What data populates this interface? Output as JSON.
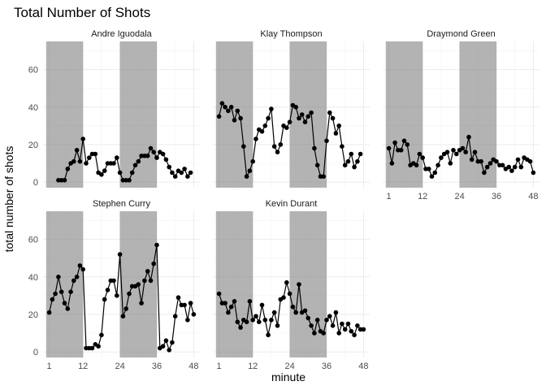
{
  "chart_data": {
    "type": "line",
    "title": "Total Number of Shots",
    "xlabel": "minute",
    "ylabel": "total number of shots",
    "xlim": [
      -1,
      50
    ],
    "ylim": [
      -3,
      75
    ],
    "x_ticks": [
      1,
      12,
      24,
      36,
      48
    ],
    "y_ticks": [
      0,
      20,
      40,
      60
    ],
    "shaded_ranges": [
      [
        0,
        12
      ],
      [
        24,
        36
      ]
    ],
    "panels": [
      {
        "name": "Andre Iguodala",
        "x": [
          4,
          5,
          6,
          7,
          8,
          9,
          10,
          11,
          12,
          13,
          14,
          15,
          16,
          17,
          18,
          19,
          20,
          21,
          22,
          23,
          24,
          25,
          26,
          27,
          28,
          29,
          30,
          31,
          32,
          33,
          34,
          35,
          36,
          37,
          38,
          39,
          40,
          41,
          42,
          43,
          44,
          45,
          46,
          47,
          48
        ],
        "values": [
          1,
          1,
          1,
          7,
          10,
          11,
          17,
          11,
          23,
          10,
          13,
          15,
          15,
          5,
          4,
          6,
          10,
          10,
          10,
          13,
          5,
          1,
          1,
          1,
          5,
          9,
          11,
          14,
          14,
          14,
          18,
          16,
          13,
          16,
          15,
          12,
          8,
          5,
          3,
          6,
          5,
          7,
          3,
          5,
          null
        ]
      },
      {
        "name": "Klay Thompson",
        "x": [
          1,
          2,
          3,
          4,
          5,
          6,
          7,
          8,
          9,
          10,
          11,
          12,
          13,
          14,
          15,
          16,
          17,
          18,
          19,
          20,
          21,
          22,
          23,
          24,
          25,
          26,
          27,
          28,
          29,
          30,
          31,
          32,
          33,
          34,
          35,
          36,
          37,
          38,
          39,
          40,
          41,
          42,
          43,
          44,
          45,
          46,
          47,
          48
        ],
        "values": [
          35,
          42,
          40,
          38,
          40,
          33,
          38,
          34,
          19,
          3,
          6,
          11,
          23,
          28,
          27,
          30,
          34,
          39,
          19,
          16,
          20,
          30,
          29,
          32,
          41,
          40,
          34,
          36,
          32,
          35,
          37,
          18,
          9,
          3,
          3,
          22,
          37,
          34,
          26,
          30,
          19,
          9,
          11,
          15,
          8,
          11,
          15,
          null
        ]
      },
      {
        "name": "Draymond Green",
        "x": [
          1,
          2,
          3,
          4,
          5,
          6,
          7,
          8,
          9,
          10,
          11,
          12,
          13,
          14,
          15,
          16,
          17,
          18,
          19,
          20,
          21,
          22,
          23,
          24,
          25,
          26,
          27,
          28,
          29,
          30,
          31,
          32,
          33,
          34,
          35,
          36,
          37,
          38,
          39,
          40,
          41,
          42,
          43,
          44,
          45,
          46,
          47,
          48
        ],
        "values": [
          18,
          10,
          21,
          17,
          17,
          22,
          20,
          9,
          10,
          9,
          15,
          13,
          7,
          7,
          3,
          5,
          9,
          13,
          15,
          16,
          10,
          17,
          15,
          17,
          18,
          16,
          24,
          12,
          16,
          11,
          11,
          5,
          8,
          10,
          12,
          11,
          9,
          9,
          7,
          8,
          6,
          8,
          12,
          8,
          13,
          12,
          11,
          5
        ]
      },
      {
        "name": "Stephen Curry",
        "x": [
          1,
          2,
          3,
          4,
          5,
          6,
          7,
          8,
          9,
          10,
          11,
          12,
          13,
          14,
          15,
          16,
          17,
          18,
          19,
          20,
          21,
          22,
          23,
          24,
          25,
          26,
          27,
          28,
          29,
          30,
          31,
          32,
          33,
          34,
          35,
          36,
          37,
          38,
          39,
          40,
          41,
          42,
          43,
          44,
          45,
          46,
          47,
          48
        ],
        "values": [
          21,
          28,
          31,
          40,
          32,
          26,
          23,
          32,
          38,
          40,
          46,
          44,
          2,
          2,
          2,
          4,
          3,
          9,
          28,
          33,
          38,
          38,
          30,
          52,
          19,
          23,
          31,
          35,
          35,
          36,
          26,
          38,
          43,
          38,
          47,
          57,
          2,
          3,
          6,
          1,
          5,
          19,
          29,
          25,
          25,
          17,
          26,
          20
        ]
      },
      {
        "name": "Kevin Durant",
        "x": [
          1,
          2,
          3,
          4,
          5,
          6,
          7,
          8,
          9,
          10,
          11,
          12,
          13,
          14,
          15,
          16,
          17,
          18,
          19,
          20,
          21,
          22,
          23,
          24,
          25,
          26,
          27,
          28,
          29,
          30,
          31,
          32,
          33,
          34,
          35,
          36,
          37,
          38,
          39,
          40,
          41,
          42,
          43,
          44,
          45,
          46,
          47,
          48
        ],
        "values": [
          31,
          26,
          26,
          21,
          24,
          27,
          16,
          13,
          17,
          16,
          27,
          17,
          19,
          16,
          25,
          17,
          9,
          17,
          21,
          14,
          28,
          29,
          37,
          31,
          24,
          21,
          36,
          21,
          22,
          18,
          14,
          10,
          17,
          11,
          10,
          17,
          19,
          14,
          21,
          10,
          15,
          12,
          15,
          11,
          9,
          14,
          12,
          12
        ]
      }
    ]
  },
  "facet_strips": [
    "Andre Iguodala",
    "Klay Thompson",
    "Draymond Green",
    "Stephen Curry",
    "Kevin Durant"
  ]
}
